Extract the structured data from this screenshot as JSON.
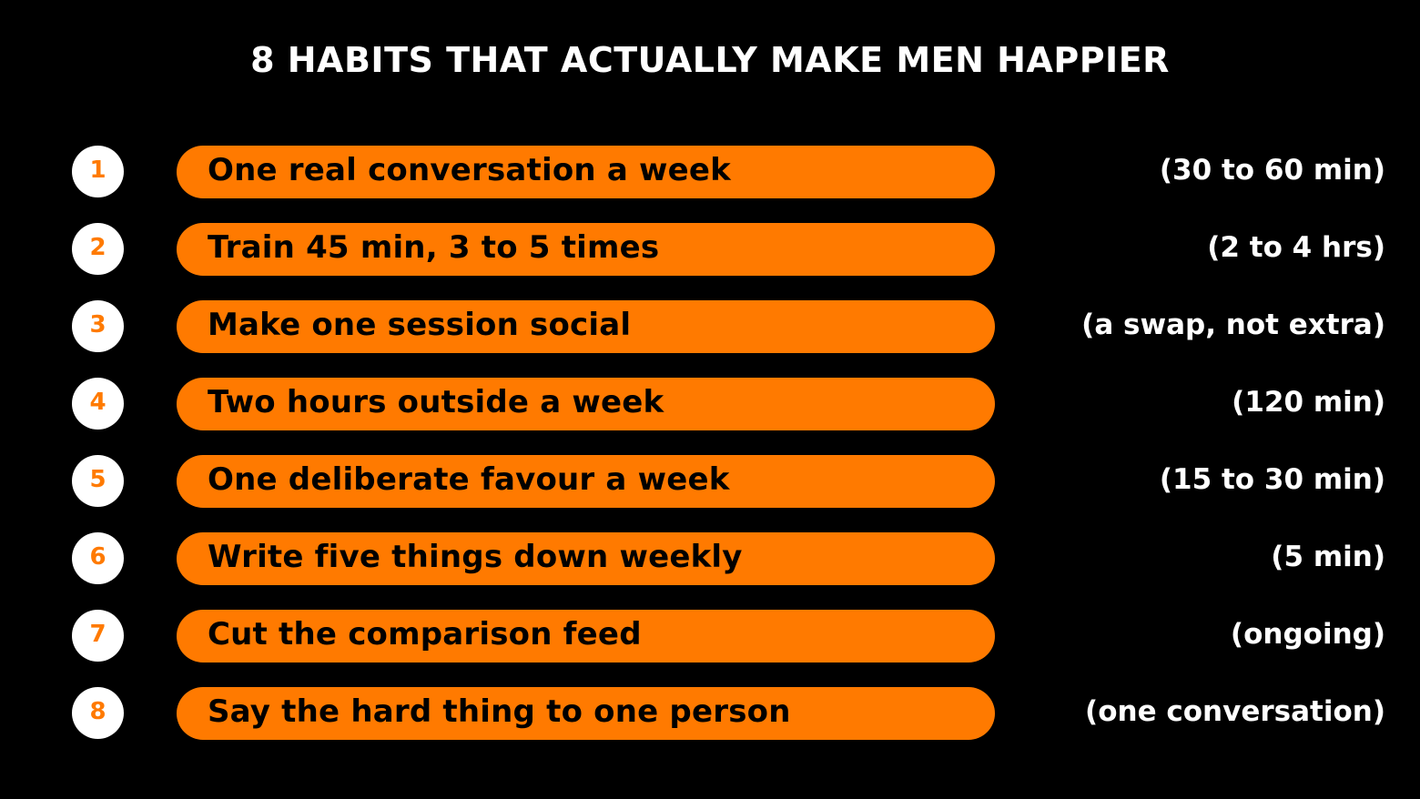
{
  "title": "8 HABITS THAT ACTUALLY MAKE MEN HAPPIER",
  "colors": {
    "background": "#000000",
    "accent": "#ff7a00",
    "text_light": "#ffffff",
    "text_dark": "#000000"
  },
  "habits": [
    {
      "number": "1",
      "label": "One real conversation a week",
      "time": "(30 to 60 min)"
    },
    {
      "number": "2",
      "label": "Train 45 min, 3 to 5 times",
      "time": "(2 to 4 hrs)"
    },
    {
      "number": "3",
      "label": "Make one session social",
      "time": "(a swap, not extra)"
    },
    {
      "number": "4",
      "label": "Two hours outside a week",
      "time": "(120 min)"
    },
    {
      "number": "5",
      "label": "One deliberate favour a week",
      "time": "(15 to 30 min)"
    },
    {
      "number": "6",
      "label": "Write five things down weekly",
      "time": "(5 min)"
    },
    {
      "number": "7",
      "label": "Cut the comparison feed",
      "time": "(ongoing)"
    },
    {
      "number": "8",
      "label": "Say the hard thing to one person",
      "time": "(one conversation)"
    }
  ]
}
